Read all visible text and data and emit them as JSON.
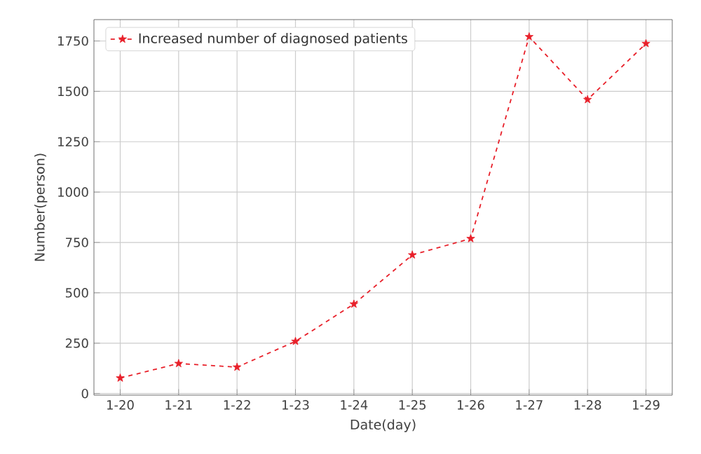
{
  "chart_data": {
    "type": "line",
    "xlabel": "Date(day)",
    "ylabel": "Number(person)",
    "categories": [
      "1-20",
      "1-21",
      "1-22",
      "1-23",
      "1-24",
      "1-25",
      "1-26",
      "1-27",
      "1-28",
      "1-29"
    ],
    "series": [
      {
        "name": "Increased number of diagnosed patients",
        "color": "#e8202a",
        "values": [
          77,
          149,
          131,
          259,
          444,
          688,
          769,
          1771,
          1459,
          1737
        ]
      }
    ],
    "ylim": [
      -8,
      1856
    ],
    "yticks": [
      0,
      250,
      500,
      750,
      1000,
      1250,
      1500,
      1750
    ],
    "grid": true,
    "legend": "top left",
    "marker": "star",
    "line_style": "dashed"
  }
}
